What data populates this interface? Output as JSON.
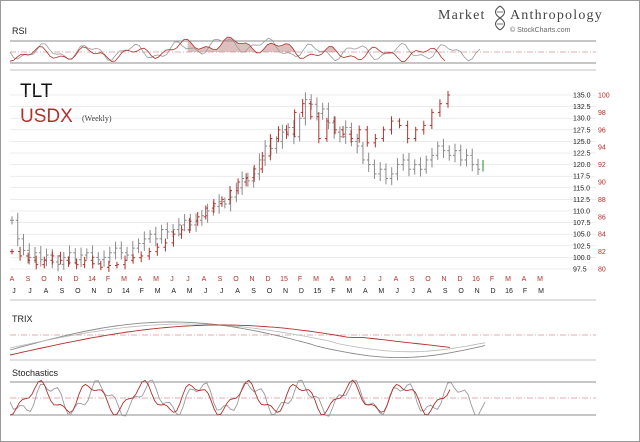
{
  "brand": {
    "name_left": "Market",
    "name_right": "Anthropology",
    "credit": "© StockCharts.com",
    "logo_icon": "dna-helix-icon"
  },
  "chart_data": {
    "type": "ohlc-bar-overlay",
    "title": "TLT",
    "subtitle": "USDX",
    "period": "(Weekly)",
    "colors": {
      "tlt": "#8a8a8a",
      "usdx": "#b0302c",
      "accent_green": "#3fa34d",
      "grid": "#c9c9c9"
    },
    "months_usdx_row": [
      "A",
      "S",
      "O",
      "N",
      "D",
      "14",
      "F",
      "M",
      "A",
      "M",
      "J",
      "J",
      "A",
      "S",
      "O",
      "N",
      "D",
      "15",
      "F",
      "M",
      "A",
      "M",
      "J",
      "J",
      "A",
      "S",
      "O",
      "N",
      "D",
      "16",
      "F",
      "M",
      "A",
      "M"
    ],
    "months_tlt_row": [
      "J",
      "J",
      "A",
      "S",
      "O",
      "N",
      "D",
      "14",
      "F",
      "M",
      "A",
      "M",
      "J",
      "J",
      "A",
      "S",
      "O",
      "N",
      "D",
      "15",
      "F",
      "M",
      "A",
      "M",
      "J",
      "J",
      "A",
      "S",
      "O",
      "N",
      "D",
      "16",
      "F",
      "M"
    ],
    "y_tlt_ticks": [
      "135.0",
      "132.5",
      "130.0",
      "127.5",
      "125.0",
      "122.5",
      "120.0",
      "117.5",
      "115.0",
      "112.5",
      "110.0",
      "107.5",
      "105.0",
      "102.5",
      "100.0",
      "97.5"
    ],
    "y_usdx_ticks": [
      "100",
      "98",
      "96",
      "94",
      "92",
      "90",
      "88",
      "86",
      "84",
      "82",
      "80"
    ],
    "tlt_range": [
      97.5,
      135.0
    ],
    "usdx_range": [
      80,
      100
    ],
    "tlt_weekly_close": [
      108,
      104,
      101.5,
      100,
      101,
      99.5,
      100.5,
      99,
      98.5,
      100,
      101,
      99.5,
      100.5,
      101,
      100,
      99.5,
      100,
      101,
      102,
      101,
      100.5,
      102,
      103,
      104,
      105,
      104,
      106,
      105.5,
      106,
      107,
      108,
      107,
      108,
      109,
      110,
      111,
      112,
      111.5,
      113,
      115,
      117,
      116.5,
      118,
      121,
      124,
      123.5,
      125,
      127,
      128,
      126,
      130,
      134,
      133,
      131,
      132,
      129,
      127,
      126,
      128,
      125,
      124,
      121,
      120,
      118,
      119,
      117,
      118,
      120,
      121,
      119,
      120,
      119,
      121,
      122,
      124,
      123,
      122,
      123,
      121,
      122,
      120,
      119
    ],
    "usdx_weekly_close": [
      82,
      81.5,
      81,
      80.5,
      81,
      81.5,
      81,
      80.7,
      80.5,
      81,
      80.6,
      80.2,
      80.4,
      80.5,
      81,
      81.3,
      81.5,
      82,
      82.5,
      83,
      84,
      84.5,
      85.5,
      86,
      87,
      87.5,
      88,
      89,
      90,
      90.5,
      91.5,
      93,
      95,
      96,
      95.5,
      98,
      99,
      97.5,
      95,
      97,
      96,
      95.5,
      95,
      96,
      94.5,
      95,
      96,
      97,
      96.5,
      95,
      96,
      96.5,
      98,
      99,
      100
    ],
    "indicators": [
      {
        "name": "RSI",
        "levels": [
          70,
          30
        ]
      },
      {
        "name": "TRIX"
      },
      {
        "name": "Stochastics",
        "levels": [
          80,
          20
        ]
      }
    ]
  }
}
